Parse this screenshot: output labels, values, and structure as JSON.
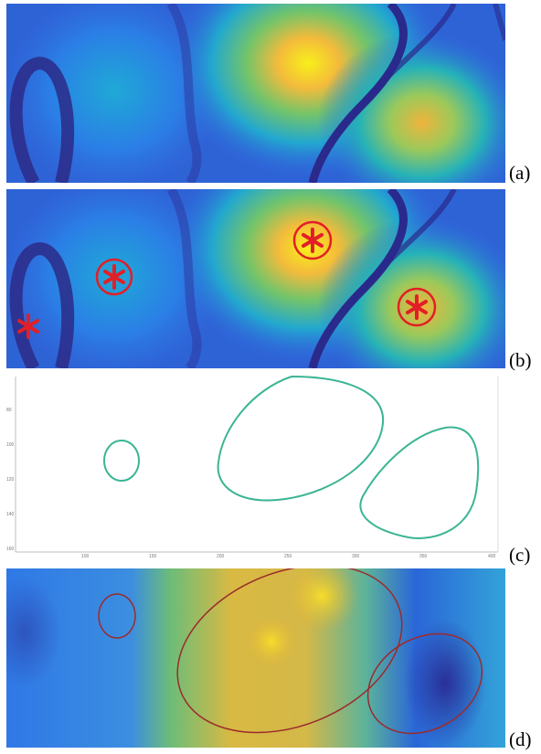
{
  "panels": [
    {
      "label": "(a)"
    },
    {
      "label": "(b)"
    },
    {
      "label": "(c)",
      "x_ticks": [
        "100",
        "150",
        "200",
        "250",
        "300",
        "350",
        "400",
        "450"
      ],
      "y_ticks": [
        "80",
        "100",
        "120",
        "140",
        "160"
      ]
    },
    {
      "label": "(d)"
    }
  ],
  "colors": {
    "bg_dark": "#2a2a8c",
    "bg_blue": "#2f6fe0",
    "cyan": "#1fb4c8",
    "green": "#4fc07a",
    "orange": "#f3b43a",
    "yellow": "#f7f11b",
    "marker_red": "#e21f26",
    "contour": "#3bb594",
    "ellipse": "#9b2b2b"
  }
}
